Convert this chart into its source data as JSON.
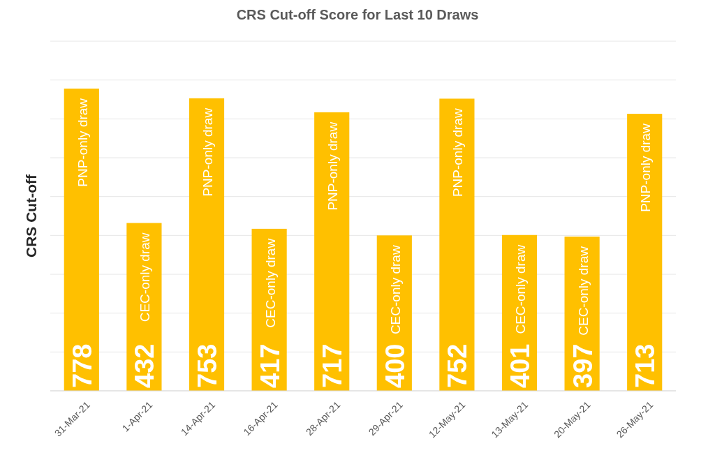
{
  "chart_data": {
    "type": "bar",
    "title": "CRS Cut-off Score for Last 10 Draws",
    "ylabel": "CRS Cut-off",
    "categories": [
      "31-Mar-21",
      "1-Apr-21",
      "14-Apr-21",
      "16-Apr-21",
      "28-Apr-21",
      "29-Apr-21",
      "12-May-21",
      "13-May-21",
      "20-May-21",
      "26-May-21"
    ],
    "values": [
      778,
      432,
      753,
      417,
      717,
      400,
      752,
      401,
      397,
      713
    ],
    "color": "#ffc000",
    "ylim": [
      0,
      900
    ],
    "yticks": [
      {
        "value": 0,
        "label": null
      },
      {
        "value": 100,
        "label": null
      },
      {
        "value": 200,
        "label": null
      },
      {
        "value": 300,
        "label": null
      },
      {
        "value": 400,
        "label": null
      },
      {
        "value": 500,
        "label": null
      },
      {
        "value": 600,
        "label": null
      },
      {
        "value": 700,
        "label": null
      },
      {
        "value": 800,
        "label": null
      },
      {
        "value": 900,
        "label": null
      }
    ],
    "tick_labels": "x",
    "grid": "y",
    "data_labels": true,
    "annotations": [
      {
        "text": "PNP-only draw",
        "x": "31-Mar-21",
        "y": 778
      },
      {
        "text": "CEC-only draw",
        "x": "1-Apr-21",
        "y": 432
      },
      {
        "text": "PNP-only draw",
        "x": "14-Apr-21",
        "y": 753
      },
      {
        "text": "CEC-only draw",
        "x": "16-Apr-21",
        "y": 417
      },
      {
        "text": "PNP-only draw",
        "x": "28-Apr-21",
        "y": 717
      },
      {
        "text": "CEC-only draw",
        "x": "29-Apr-21",
        "y": 400
      },
      {
        "text": "PNP-only draw",
        "x": "12-May-21",
        "y": 752
      },
      {
        "text": "CEC-only draw",
        "x": "13-May-21",
        "y": 401
      },
      {
        "text": "CEC-only draw",
        "x": "20-May-21",
        "y": 397
      },
      {
        "text": "PNP-only draw",
        "x": "26-May-21",
        "y": 713
      }
    ]
  }
}
